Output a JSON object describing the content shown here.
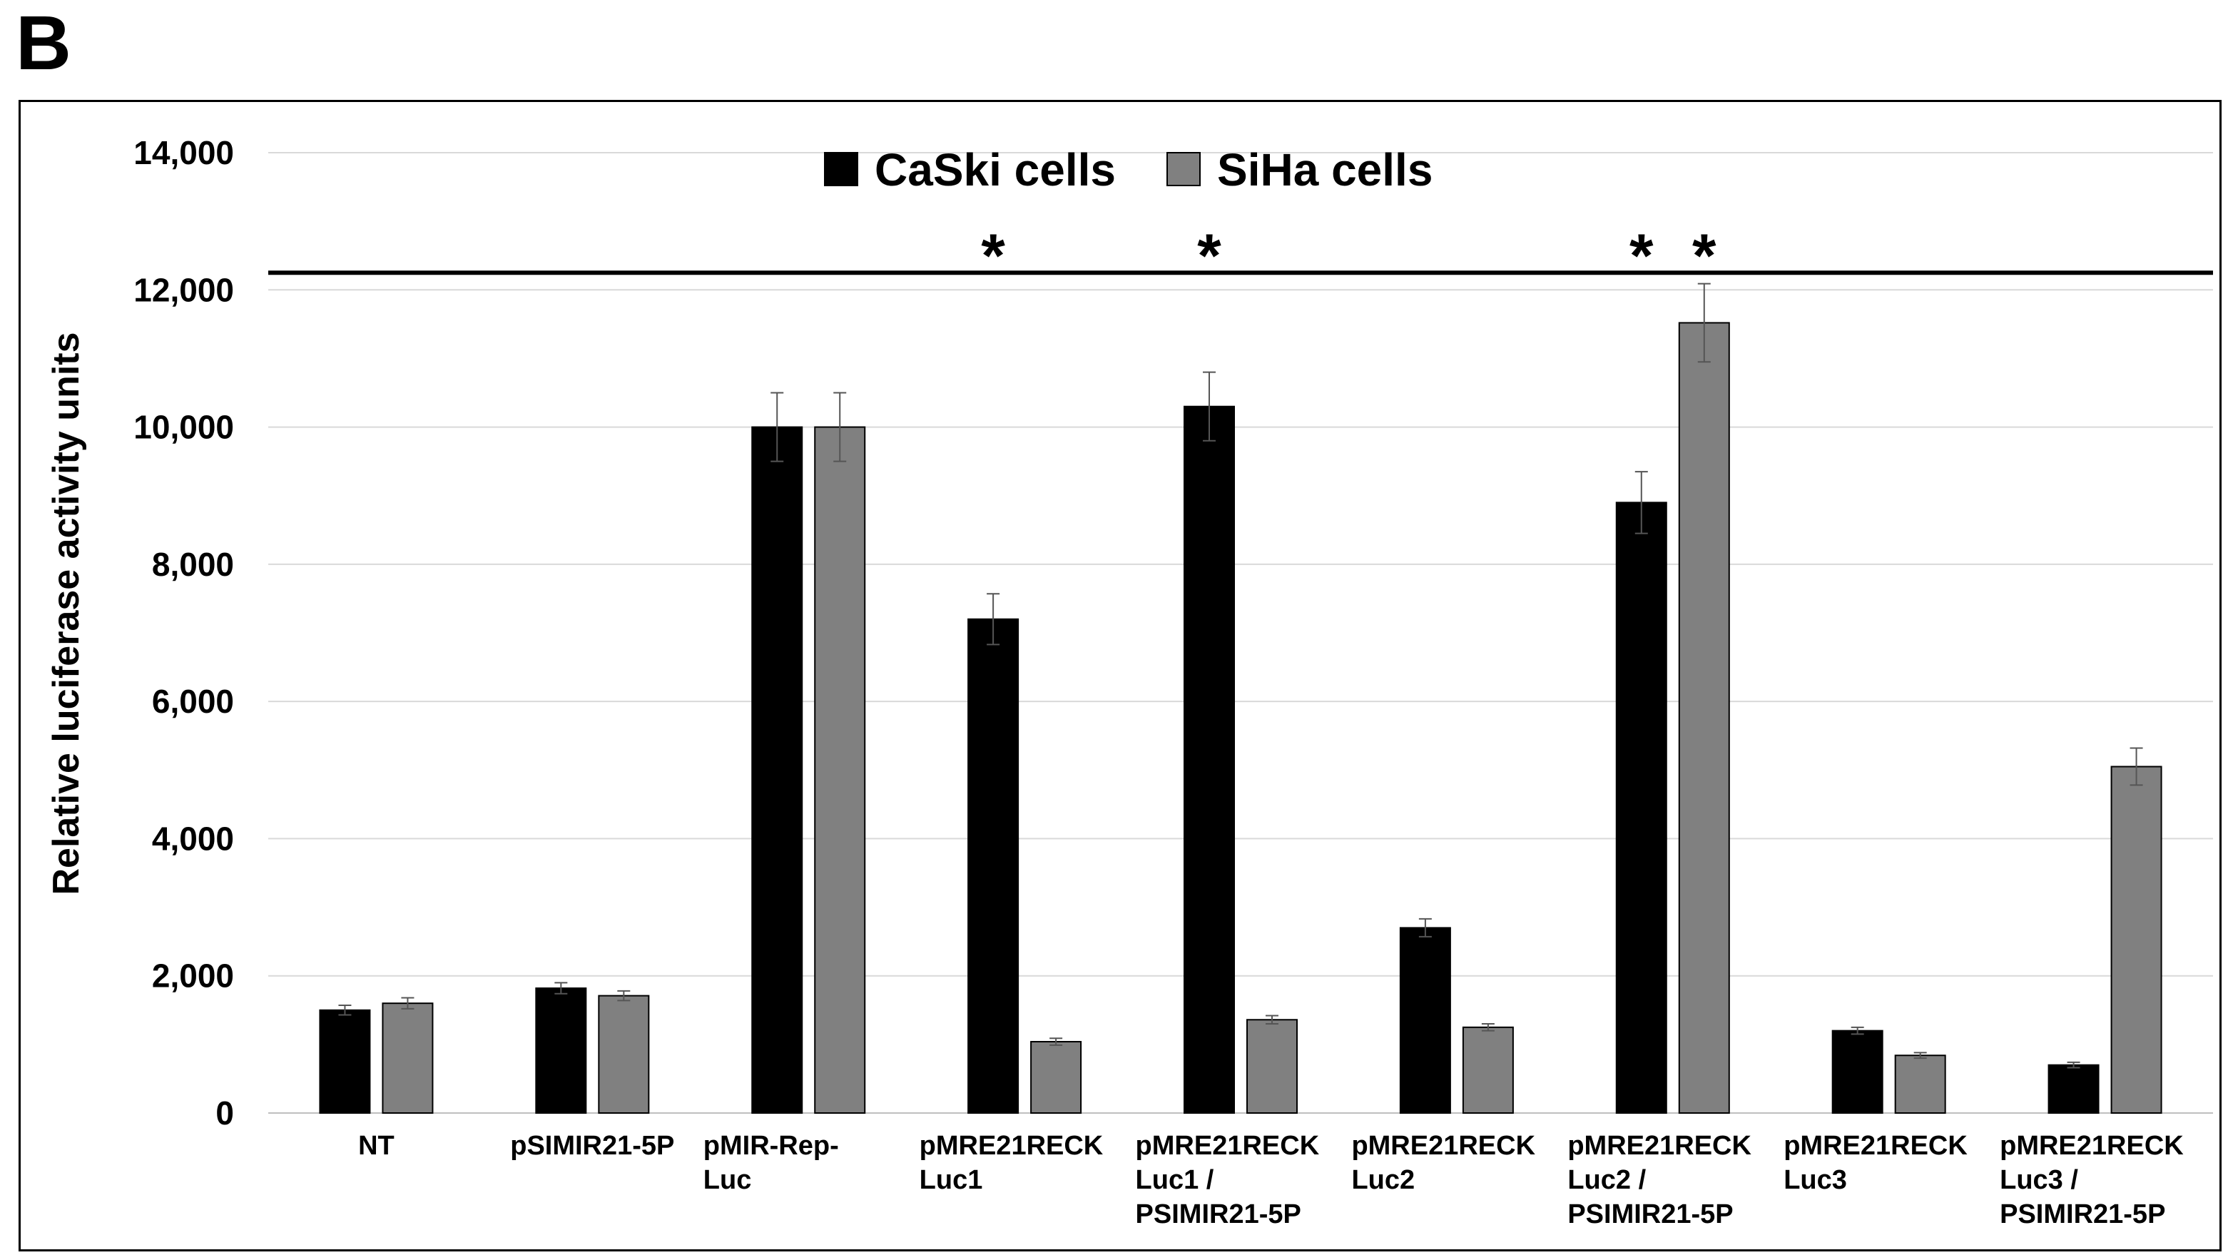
{
  "panel_label": "B",
  "chart_data": {
    "type": "bar",
    "title": "",
    "xlabel": "",
    "ylabel": "Relative luciferase activity units",
    "ylim": [
      0,
      14000
    ],
    "yticks": [
      0,
      2000,
      4000,
      6000,
      8000,
      10000,
      12000,
      14000
    ],
    "ytick_labels": [
      "0",
      "2,000",
      "4,000",
      "6,000",
      "8,000",
      "10,000",
      "12,000",
      "14,000"
    ],
    "grid": true,
    "legend_position": "top-center",
    "categories": [
      [
        "NT"
      ],
      [
        "pSIMIR21-5P"
      ],
      [
        "pMIR-Rep-",
        "Luc"
      ],
      [
        "pMRE21RECK",
        "Luc1"
      ],
      [
        "pMRE21RECK",
        "Luc1 /",
        "PSIMIR21-5P"
      ],
      [
        "pMRE21RECK",
        "Luc2"
      ],
      [
        "pMRE21RECK",
        "Luc2 /",
        "PSIMIR21-5P"
      ],
      [
        "pMRE21RECK",
        "Luc3"
      ],
      [
        "pMRE21RECK",
        "Luc3 /",
        "PSIMIR21-5P"
      ]
    ],
    "series": [
      {
        "name": "CaSki cells",
        "color": "#000000",
        "values": [
          1500,
          1820,
          10000,
          7200,
          10300,
          2700,
          8900,
          1200,
          700
        ],
        "errors": [
          70,
          80,
          500,
          370,
          500,
          130,
          450,
          50,
          40
        ]
      },
      {
        "name": "SiHa cells",
        "color": "#808080",
        "values": [
          1600,
          1710,
          10000,
          1040,
          1360,
          1250,
          11520,
          840,
          5050
        ],
        "errors": [
          80,
          70,
          500,
          50,
          60,
          50,
          570,
          40,
          270
        ]
      }
    ],
    "reference_line": 12250,
    "significance": {
      "symbol": "*",
      "marks": [
        {
          "category": 3,
          "series": 0
        },
        {
          "category": 4,
          "series": 0
        },
        {
          "category": 6,
          "series": 0
        },
        {
          "category": 6,
          "series": 1
        }
      ]
    }
  }
}
